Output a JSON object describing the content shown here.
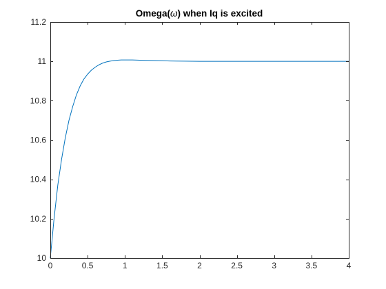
{
  "chart_data": {
    "type": "line",
    "title_main": "Omega(",
    "title_symbol": "ω",
    "title_rest": ") when Iq is excited",
    "xlim": [
      0,
      4
    ],
    "ylim": [
      10,
      11.2
    ],
    "x_ticks": [
      "0",
      "0.5",
      "1",
      "1.5",
      "2",
      "2.5",
      "3",
      "3.5",
      "4"
    ],
    "y_ticks": [
      "10",
      "10.2",
      "10.4",
      "10.6",
      "10.8",
      "11",
      "11.2"
    ],
    "grid": false,
    "series": [
      {
        "color": "#0072BD",
        "x": [
          0,
          0.05,
          0.1,
          0.15,
          0.2,
          0.25,
          0.3,
          0.35,
          0.4,
          0.45,
          0.5,
          0.55,
          0.6,
          0.65,
          0.7,
          0.75,
          0.8,
          0.85,
          0.9,
          0.95,
          1.0,
          1.1,
          1.2,
          1.3,
          1.4,
          1.5,
          1.6,
          1.8,
          2.0,
          2.5,
          3.0,
          3.5,
          4.0
        ],
        "y": [
          10.0,
          10.2,
          10.37,
          10.5,
          10.61,
          10.7,
          10.77,
          10.83,
          10.875,
          10.91,
          10.935,
          10.955,
          10.97,
          10.982,
          10.991,
          10.997,
          11.001,
          11.004,
          11.006,
          11.007,
          11.007,
          11.007,
          11.006,
          11.005,
          11.004,
          11.003,
          11.002,
          11.001,
          11.0,
          11.0,
          11.0,
          11.0,
          11.0
        ]
      }
    ]
  }
}
